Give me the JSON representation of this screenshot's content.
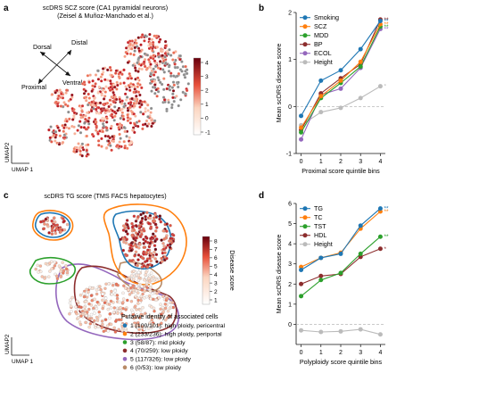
{
  "panel_a": {
    "letter": "a",
    "title": "scDRS SCZ score (CA1 pyramidal neurons)",
    "subtitle": "(Zeisel & Muñoz-Manchado et al.)",
    "arrows": {
      "distal": "Distal",
      "dorsal": "Dorsal",
      "ventral": "Ventral",
      "proximal": "Proximal"
    },
    "axis_x": "UMAP 1",
    "axis_y": "UMAP2",
    "colorbar_ticks": [
      "4",
      "3",
      "2",
      "1",
      "0",
      "-1"
    ]
  },
  "panel_c": {
    "letter": "c",
    "title": "scDRS TG score (TMS FACS hepatocytes)",
    "axis_x": "UMAP 1",
    "axis_y": "UMAP2",
    "colorbar_label": "Disease score",
    "colorbar_ticks": [
      "8",
      "7",
      "6",
      "5",
      "4",
      "3",
      "2",
      "1"
    ],
    "legend_title": "Putative identity of associated cells",
    "legend": [
      {
        "label": "1 (100/101): high ploidy, pericentral",
        "color": "#1f77b4"
      },
      {
        "label": "2 (233/236): high ploidy, periportal",
        "color": "#ff7f0e"
      },
      {
        "label": "3 (58/87): mid ploidy",
        "color": "#2ca02c"
      },
      {
        "label": "4 (70/259): low ploidy",
        "color": "#8c2d2d"
      },
      {
        "label": "5 (117/326): low ploidy",
        "color": "#9467bd"
      },
      {
        "label": "6 (0/53): low ploidy",
        "color": "#b88a66"
      }
    ]
  },
  "chart_data": [
    {
      "panel": "b",
      "type": "line",
      "title": "",
      "xlabel": "Proximal score quintile bins",
      "ylabel": "Mean scDRS disease score",
      "x": [
        0,
        1,
        2,
        3,
        4
      ],
      "xlim": [
        -0.25,
        4.25
      ],
      "ylim": [
        -1,
        2
      ],
      "yticks": [
        -1,
        0,
        1,
        2
      ],
      "series": [
        {
          "name": "Smoking",
          "color": "#1f77b4",
          "values": [
            -0.2,
            0.55,
            0.77,
            1.22,
            1.82
          ],
          "sig": "**"
        },
        {
          "name": "SCZ",
          "color": "#ff7f0e",
          "values": [
            -0.45,
            0.22,
            0.55,
            0.95,
            1.75
          ],
          "sig": "**"
        },
        {
          "name": "MDD",
          "color": "#2ca02c",
          "values": [
            -0.55,
            0.18,
            0.5,
            0.85,
            1.7
          ],
          "sig": "**"
        },
        {
          "name": "BP",
          "color": "#8c2d2d",
          "values": [
            -0.5,
            0.28,
            0.6,
            0.9,
            1.85
          ],
          "sig": "**"
        },
        {
          "name": "ECOL",
          "color": "#9467bd",
          "values": [
            -0.7,
            0.25,
            0.38,
            0.82,
            1.65
          ],
          "sig": "**"
        },
        {
          "name": "Height",
          "color": "#bbbbbb",
          "values": [
            -0.4,
            -0.12,
            -0.03,
            0.18,
            0.43
          ],
          "sig": "*"
        }
      ]
    },
    {
      "panel": "d",
      "type": "line",
      "title": "",
      "xlabel": "Polyploidy score quintile bins",
      "ylabel": "Mean scDRS disease score",
      "x": [
        0,
        1,
        2,
        3,
        4
      ],
      "xlim": [
        -0.25,
        4.25
      ],
      "ylim": [
        -1,
        6
      ],
      "yticks": [
        0,
        1,
        2,
        3,
        4,
        5,
        6
      ],
      "series": [
        {
          "name": "TG",
          "color": "#1f77b4",
          "values": [
            2.7,
            3.3,
            3.5,
            4.9,
            5.75
          ],
          "sig": "**"
        },
        {
          "name": "TC",
          "color": "#ff7f0e",
          "values": [
            2.85,
            3.3,
            3.55,
            4.75,
            5.6
          ],
          "sig": "**"
        },
        {
          "name": "TST",
          "color": "#2ca02c",
          "values": [
            1.4,
            2.2,
            2.55,
            3.5,
            4.35
          ],
          "sig": "**"
        },
        {
          "name": "HDL",
          "color": "#8c2d2d",
          "values": [
            2.0,
            2.4,
            2.5,
            3.35,
            3.75
          ],
          "sig": "*"
        },
        {
          "name": "Height",
          "color": "#bbbbbb",
          "values": [
            -0.3,
            -0.38,
            -0.35,
            -0.25,
            -0.5
          ],
          "sig": ""
        }
      ]
    }
  ]
}
